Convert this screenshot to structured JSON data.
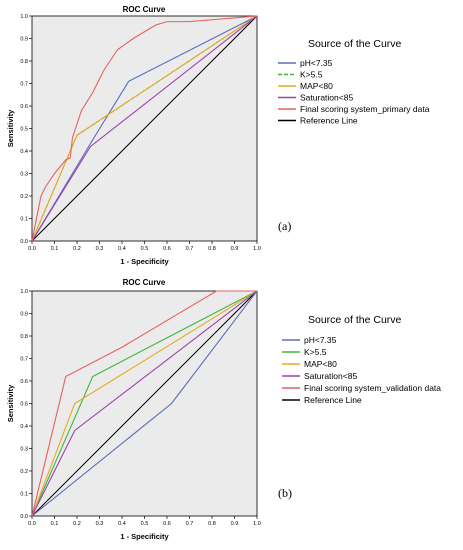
{
  "panels": [
    {
      "panel_label": "(a)",
      "legend_title": "Source of the Curve"
    },
    {
      "panel_label": "(b)",
      "legend_title": "Source of the Curve"
    }
  ],
  "chart_data": [
    {
      "type": "line",
      "title": "ROC Curve",
      "xlabel": "1 - Specificity",
      "ylabel": "Sensitivity",
      "xlim": [
        0,
        1
      ],
      "ylim": [
        0,
        1
      ],
      "xticks": [
        "0.0",
        "0.1",
        "0.2",
        "0.3",
        "0.4",
        "0.5",
        "0.6",
        "0.7",
        "0.8",
        "0.9",
        "1.0"
      ],
      "yticks": [
        "0.0",
        "0.1",
        "0.2",
        "0.3",
        "0.4",
        "0.5",
        "0.6",
        "0.7",
        "0.8",
        "0.9",
        "1.0"
      ],
      "grid": false,
      "legend_position": "right",
      "series": [
        {
          "name": "pH<7.35",
          "color": "#5b6bbf",
          "dashed": false,
          "points": [
            [
              0,
              0
            ],
            [
              0.27,
              0.45
            ],
            [
              0.43,
              0.71
            ],
            [
              1,
              1
            ]
          ]
        },
        {
          "name": "K>5.5",
          "color": "#3cb83c",
          "dashed": true,
          "points": [
            [
              0,
              0
            ],
            [
              0.2,
              0.47
            ],
            [
              1,
              1
            ]
          ]
        },
        {
          "name": "MAP<80",
          "color": "#e8a820",
          "dashed": false,
          "points": [
            [
              0,
              0
            ],
            [
              0.2,
              0.47
            ],
            [
              1,
              1
            ]
          ]
        },
        {
          "name": "Saturation<85",
          "color": "#a040b0",
          "dashed": false,
          "points": [
            [
              0,
              0
            ],
            [
              0.26,
              0.42
            ],
            [
              1,
              1
            ]
          ]
        },
        {
          "name": "Final scoring system_primary data",
          "color": "#e86060",
          "dashed": false,
          "points": [
            [
              0,
              0
            ],
            [
              0.02,
              0.1
            ],
            [
              0.04,
              0.2
            ],
            [
              0.06,
              0.24
            ],
            [
              0.1,
              0.3
            ],
            [
              0.15,
              0.36
            ],
            [
              0.17,
              0.37
            ],
            [
              0.18,
              0.46
            ],
            [
              0.22,
              0.58
            ],
            [
              0.27,
              0.66
            ],
            [
              0.32,
              0.76
            ],
            [
              0.38,
              0.85
            ],
            [
              0.45,
              0.9
            ],
            [
              0.55,
              0.96
            ],
            [
              0.6,
              0.975
            ],
            [
              0.7,
              0.975
            ],
            [
              1,
              1
            ]
          ]
        },
        {
          "name": "Reference Line",
          "color": "#000000",
          "dashed": false,
          "points": [
            [
              0,
              0
            ],
            [
              1,
              1
            ]
          ]
        }
      ]
    },
    {
      "type": "line",
      "title": "ROC Curve",
      "xlabel": "1 - Specificity",
      "ylabel": "Sensitivity",
      "xlim": [
        0,
        1
      ],
      "ylim": [
        0,
        1
      ],
      "xticks": [
        "0.0",
        "0.1",
        "0.2",
        "0.3",
        "0.4",
        "0.5",
        "0.6",
        "0.7",
        "0.8",
        "0.9",
        "1.0"
      ],
      "yticks": [
        "0.0",
        "0.1",
        "0.2",
        "0.3",
        "0.4",
        "0.5",
        "0.6",
        "0.7",
        "0.8",
        "0.9",
        "1.0"
      ],
      "grid": false,
      "legend_position": "right",
      "series": [
        {
          "name": "pH<7.35",
          "color": "#5b6bbf",
          "dashed": false,
          "points": [
            [
              0,
              0
            ],
            [
              0.62,
              0.5
            ],
            [
              1,
              1
            ]
          ]
        },
        {
          "name": "K>5.5",
          "color": "#3cb83c",
          "dashed": false,
          "points": [
            [
              0,
              0
            ],
            [
              0.27,
              0.62
            ],
            [
              1,
              1
            ]
          ]
        },
        {
          "name": "MAP<80",
          "color": "#e8a820",
          "dashed": false,
          "points": [
            [
              0,
              0
            ],
            [
              0.19,
              0.5
            ],
            [
              1,
              1
            ]
          ]
        },
        {
          "name": "Saturation<85",
          "color": "#a040b0",
          "dashed": false,
          "points": [
            [
              0,
              0
            ],
            [
              0.19,
              0.38
            ],
            [
              1,
              1
            ]
          ]
        },
        {
          "name": "Final scoring system_validation data",
          "color": "#e86060",
          "dashed": false,
          "points": [
            [
              0,
              0
            ],
            [
              0.15,
              0.62
            ],
            [
              0.4,
              0.75
            ],
            [
              0.82,
              1
            ],
            [
              1,
              1
            ]
          ]
        },
        {
          "name": "Reference Line",
          "color": "#000000",
          "dashed": false,
          "points": [
            [
              0,
              0
            ],
            [
              1,
              1
            ]
          ]
        }
      ]
    }
  ]
}
